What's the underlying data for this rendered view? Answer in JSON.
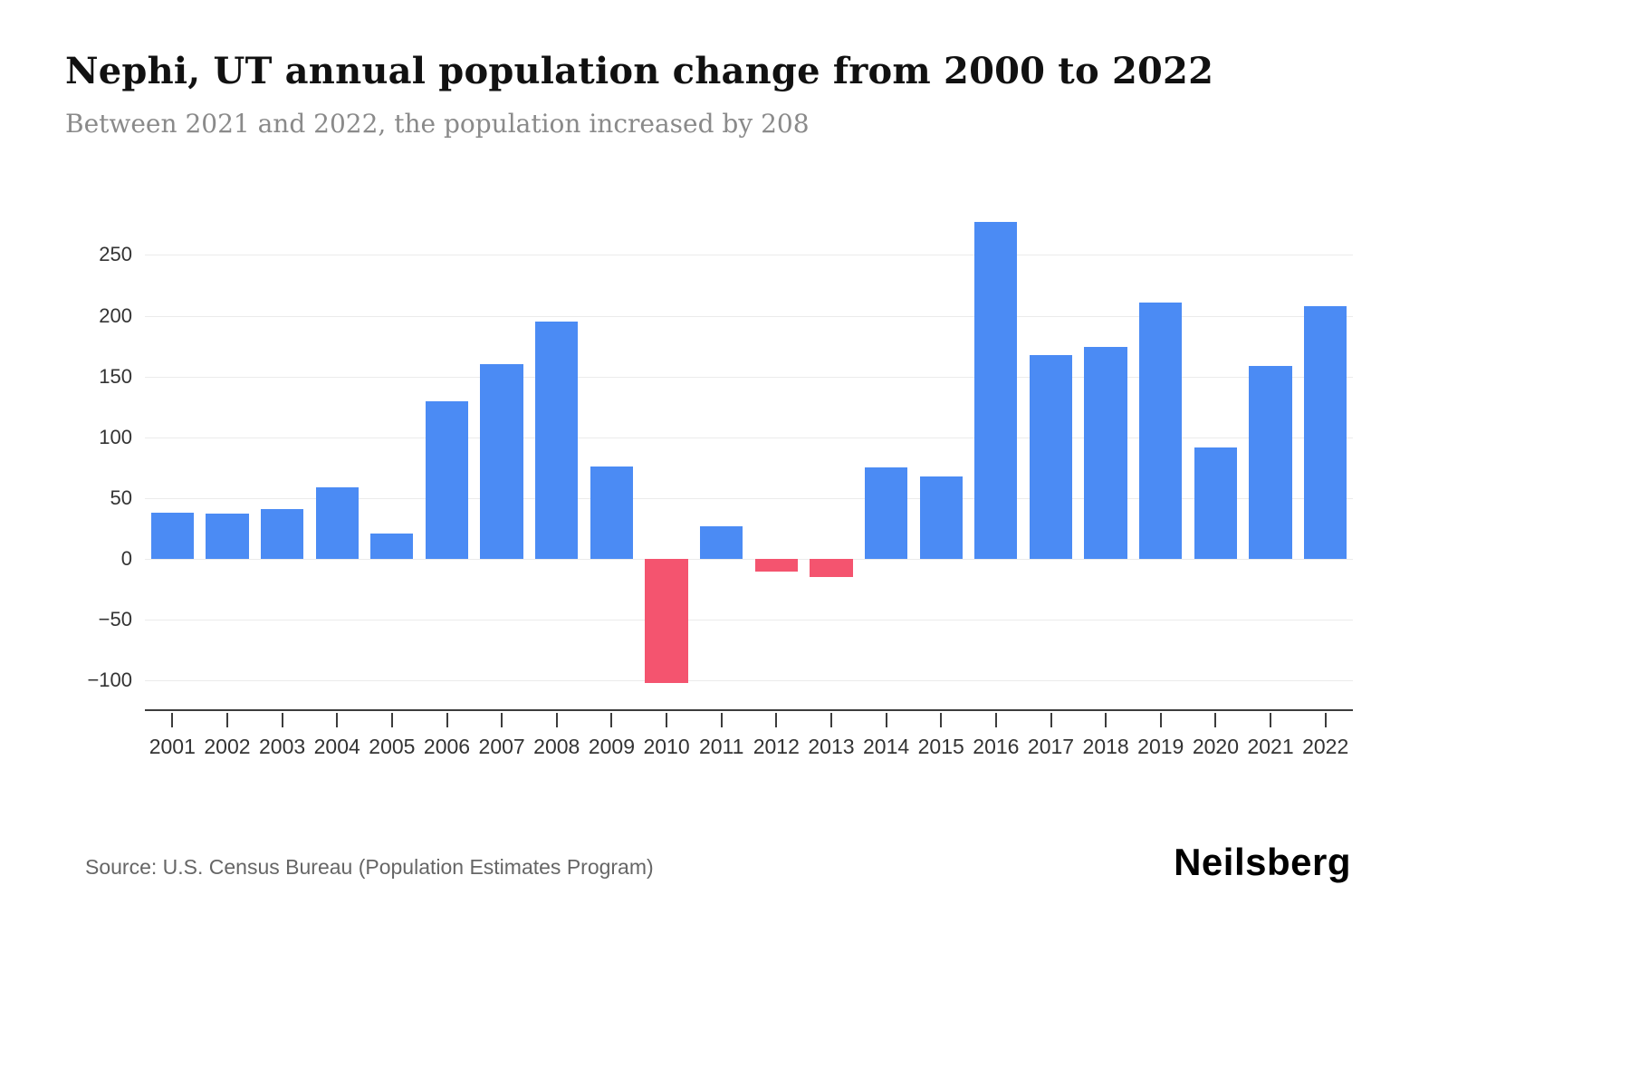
{
  "header": {
    "title": "Nephi, UT annual population change from 2000 to 2022",
    "subtitle": "Between 2021 and 2022, the population increased by 208"
  },
  "footer": {
    "source": "Source: U.S. Census Bureau (Population Estimates Program)",
    "brand": "Neilsberg"
  },
  "chart_data": {
    "type": "bar",
    "title": "Nephi, UT annual population change from 2000 to 2022",
    "subtitle": "Between 2021 and 2022, the population increased by 208",
    "categories": [
      "2001",
      "2002",
      "2003",
      "2004",
      "2005",
      "2006",
      "2007",
      "2008",
      "2009",
      "2010",
      "2011",
      "2012",
      "2013",
      "2014",
      "2015",
      "2016",
      "2017",
      "2018",
      "2019",
      "2020",
      "2021",
      "2022"
    ],
    "values": [
      38,
      37,
      41,
      59,
      21,
      130,
      160,
      195,
      76,
      -102,
      27,
      -10,
      -15,
      75,
      68,
      277,
      168,
      174,
      211,
      92,
      159,
      208
    ],
    "xlabel": "",
    "ylabel": "",
    "ylim": [
      -125,
      292
    ],
    "yticks": [
      250,
      200,
      150,
      100,
      50,
      0,
      -50,
      -100
    ],
    "grid": true,
    "legend": false,
    "colors": {
      "positive": "#4b8bf4",
      "negative": "#f4546f"
    }
  }
}
